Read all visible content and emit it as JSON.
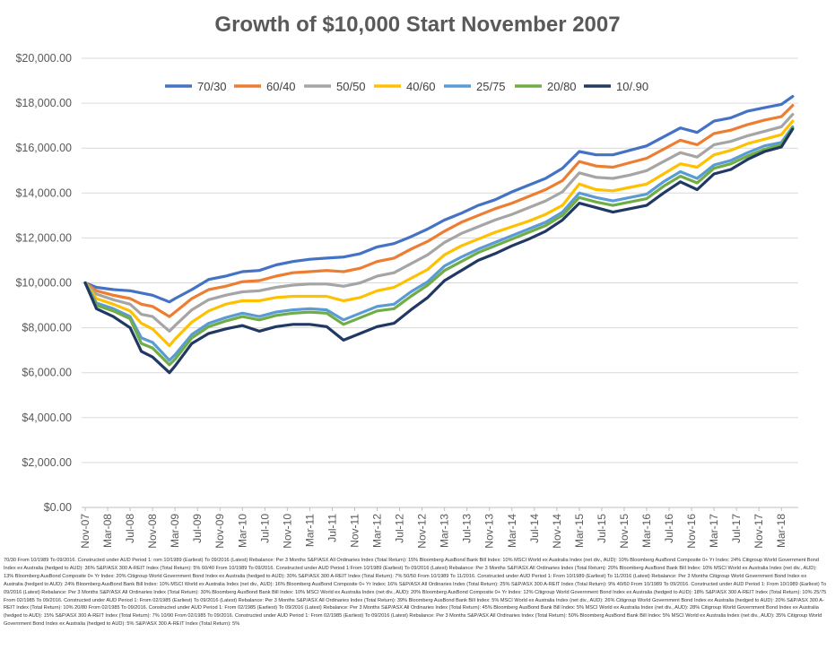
{
  "chart_data": {
    "type": "line",
    "title": "Growth of $10,000 Start November 2007",
    "xlabel": "",
    "ylabel": "",
    "ylim": [
      0,
      20000
    ],
    "y_ticks": [
      "$0.00",
      "$2,000.00",
      "$4,000.00",
      "$6,000.00",
      "$8,000.00",
      "$10,000.00",
      "$12,000.00",
      "$14,000.00",
      "$16,000.00",
      "$18,000.00",
      "$20,000.00"
    ],
    "x_ticks": [
      "Nov-07",
      "Mar-08",
      "Jul-08",
      "Nov-08",
      "Mar-09",
      "Jul-09",
      "Nov-09",
      "Mar-10",
      "Jul-10",
      "Nov-10",
      "Mar-11",
      "Jul-11",
      "Nov-11",
      "Mar-12",
      "Jul-12",
      "Nov-12",
      "Mar-13",
      "Jul-13",
      "Nov-13",
      "Mar-14",
      "Jul-14",
      "Nov-14",
      "Mar-15",
      "Jul-15",
      "Nov-15",
      "Mar-16",
      "Jul-16",
      "Nov-16",
      "Mar-17",
      "Jul-17",
      "Nov-17",
      "Mar-18"
    ],
    "grid": "horizontal",
    "legend_position": "top",
    "series": [
      {
        "name": "70/30",
        "color": "#4472C4",
        "x": [
          "2007-11",
          "2008-01",
          "2008-04",
          "2008-07",
          "2008-09",
          "2008-11",
          "2009-02",
          "2009-03",
          "2009-06",
          "2009-09",
          "2009-12",
          "2010-03",
          "2010-06",
          "2010-09",
          "2010-12",
          "2011-03",
          "2011-06",
          "2011-09",
          "2011-12",
          "2012-03",
          "2012-06",
          "2012-09",
          "2012-12",
          "2013-03",
          "2013-06",
          "2013-09",
          "2013-12",
          "2014-03",
          "2014-06",
          "2014-09",
          "2014-12",
          "2015-03",
          "2015-06",
          "2015-09",
          "2015-12",
          "2016-03",
          "2016-06",
          "2016-09",
          "2016-12",
          "2017-03",
          "2017-06",
          "2017-09",
          "2017-12",
          "2018-03",
          "2018-05"
        ],
        "y": [
          10000,
          9800,
          9700,
          9650,
          9550,
          9450,
          9150,
          9300,
          9700,
          10150,
          10300,
          10500,
          10550,
          10800,
          10950,
          11050,
          11100,
          11150,
          11300,
          11600,
          11750,
          12050,
          12400,
          12800,
          13100,
          13450,
          13700,
          14050,
          14350,
          14650,
          15100,
          15850,
          15700,
          15700,
          15900,
          16100,
          16500,
          16900,
          16700,
          17200,
          17350,
          17650,
          17800,
          17950,
          18300
        ]
      },
      {
        "name": "60/40",
        "color": "#ED7D31",
        "x": [
          "2007-11",
          "2008-01",
          "2008-04",
          "2008-07",
          "2008-09",
          "2008-11",
          "2009-02",
          "2009-03",
          "2009-06",
          "2009-09",
          "2009-12",
          "2010-03",
          "2010-06",
          "2010-09",
          "2010-12",
          "2011-03",
          "2011-06",
          "2011-09",
          "2011-12",
          "2012-03",
          "2012-06",
          "2012-09",
          "2012-12",
          "2013-03",
          "2013-06",
          "2013-09",
          "2013-12",
          "2014-03",
          "2014-06",
          "2014-09",
          "2014-12",
          "2015-03",
          "2015-06",
          "2015-09",
          "2015-12",
          "2016-03",
          "2016-06",
          "2016-09",
          "2016-12",
          "2017-03",
          "2017-06",
          "2017-09",
          "2017-12",
          "2018-03",
          "2018-05"
        ],
        "y": [
          10000,
          9650,
          9450,
          9300,
          9050,
          8950,
          8500,
          8700,
          9300,
          9700,
          9850,
          10050,
          10100,
          10300,
          10450,
          10500,
          10550,
          10500,
          10650,
          10950,
          11100,
          11500,
          11850,
          12300,
          12700,
          13000,
          13300,
          13550,
          13850,
          14150,
          14550,
          15400,
          15200,
          15150,
          15350,
          15550,
          15950,
          16350,
          16150,
          16650,
          16800,
          17050,
          17250,
          17400,
          17900
        ]
      },
      {
        "name": "50/50",
        "color": "#A5A5A5",
        "x": [
          "2007-11",
          "2008-01",
          "2008-04",
          "2008-07",
          "2008-09",
          "2008-11",
          "2009-02",
          "2009-03",
          "2009-06",
          "2009-09",
          "2009-12",
          "2010-03",
          "2010-06",
          "2010-09",
          "2010-12",
          "2011-03",
          "2011-06",
          "2011-09",
          "2011-12",
          "2012-03",
          "2012-06",
          "2012-09",
          "2012-12",
          "2013-03",
          "2013-06",
          "2013-09",
          "2013-12",
          "2014-03",
          "2014-06",
          "2014-09",
          "2014-12",
          "2015-03",
          "2015-06",
          "2015-09",
          "2015-12",
          "2016-03",
          "2016-06",
          "2016-09",
          "2016-12",
          "2017-03",
          "2017-06",
          "2017-09",
          "2017-12",
          "2018-03",
          "2018-05"
        ],
        "y": [
          10000,
          9500,
          9250,
          9050,
          8600,
          8500,
          7850,
          8100,
          8800,
          9250,
          9450,
          9600,
          9650,
          9800,
          9900,
          9950,
          9950,
          9850,
          10000,
          10300,
          10450,
          10850,
          11250,
          11800,
          12200,
          12500,
          12800,
          13050,
          13350,
          13650,
          14050,
          14900,
          14700,
          14650,
          14800,
          15000,
          15400,
          15800,
          15600,
          16150,
          16300,
          16550,
          16750,
          16950,
          17500
        ]
      },
      {
        "name": "40/60",
        "color": "#FFC000",
        "x": [
          "2007-11",
          "2008-01",
          "2008-04",
          "2008-07",
          "2008-09",
          "2008-11",
          "2009-02",
          "2009-03",
          "2009-06",
          "2009-09",
          "2009-12",
          "2010-03",
          "2010-06",
          "2010-09",
          "2010-12",
          "2011-03",
          "2011-06",
          "2011-09",
          "2011-12",
          "2012-03",
          "2012-06",
          "2012-09",
          "2012-12",
          "2013-03",
          "2013-06",
          "2013-09",
          "2013-12",
          "2014-03",
          "2014-06",
          "2014-09",
          "2014-12",
          "2015-03",
          "2015-06",
          "2015-09",
          "2015-12",
          "2016-03",
          "2016-06",
          "2016-09",
          "2016-12",
          "2017-03",
          "2017-06",
          "2017-09",
          "2017-12",
          "2018-03",
          "2018-05"
        ],
        "y": [
          10000,
          9300,
          9050,
          8750,
          8200,
          7950,
          7200,
          7500,
          8250,
          8750,
          9050,
          9200,
          9200,
          9350,
          9400,
          9400,
          9400,
          9200,
          9350,
          9650,
          9800,
          10200,
          10600,
          11250,
          11650,
          11950,
          12250,
          12500,
          12750,
          13050,
          13450,
          14400,
          14150,
          14100,
          14250,
          14400,
          14850,
          15300,
          15150,
          15700,
          15900,
          16200,
          16400,
          16600,
          17200
        ]
      },
      {
        "name": "25/75",
        "color": "#5B9BD5",
        "x": [
          "2007-11",
          "2008-01",
          "2008-04",
          "2008-07",
          "2008-09",
          "2008-11",
          "2009-02",
          "2009-03",
          "2009-06",
          "2009-09",
          "2009-12",
          "2010-03",
          "2010-06",
          "2010-09",
          "2010-12",
          "2011-03",
          "2011-06",
          "2011-09",
          "2011-12",
          "2012-03",
          "2012-06",
          "2012-09",
          "2012-12",
          "2013-03",
          "2013-06",
          "2013-09",
          "2013-12",
          "2014-03",
          "2014-06",
          "2014-09",
          "2014-12",
          "2015-03",
          "2015-06",
          "2015-09",
          "2015-12",
          "2016-03",
          "2016-06",
          "2016-09",
          "2016-12",
          "2017-03",
          "2017-06",
          "2017-09",
          "2017-12",
          "2018-03",
          "2018-05"
        ],
        "y": [
          10000,
          9100,
          8850,
          8500,
          7550,
          7350,
          6550,
          6800,
          7700,
          8200,
          8450,
          8650,
          8500,
          8700,
          8800,
          8850,
          8800,
          8350,
          8650,
          8950,
          9050,
          9600,
          10050,
          10750,
          11150,
          11500,
          11800,
          12100,
          12400,
          12700,
          13150,
          14000,
          13800,
          13650,
          13800,
          13950,
          14500,
          14950,
          14650,
          15250,
          15450,
          15800,
          16100,
          16250,
          16950
        ]
      },
      {
        "name": "20/80",
        "color": "#70AD47",
        "x": [
          "2007-11",
          "2008-01",
          "2008-04",
          "2008-07",
          "2008-09",
          "2008-11",
          "2009-02",
          "2009-03",
          "2009-06",
          "2009-09",
          "2009-12",
          "2010-03",
          "2010-06",
          "2010-09",
          "2010-12",
          "2011-03",
          "2011-06",
          "2011-09",
          "2011-12",
          "2012-03",
          "2012-06",
          "2012-09",
          "2012-12",
          "2013-03",
          "2013-06",
          "2013-09",
          "2013-12",
          "2014-03",
          "2014-06",
          "2014-09",
          "2014-12",
          "2015-03",
          "2015-06",
          "2015-09",
          "2015-12",
          "2016-03",
          "2016-06",
          "2016-09",
          "2016-12",
          "2017-03",
          "2017-06",
          "2017-09",
          "2017-12",
          "2018-03",
          "2018-05"
        ],
        "y": [
          10000,
          9000,
          8750,
          8400,
          7300,
          7100,
          6350,
          6600,
          7550,
          8050,
          8300,
          8500,
          8350,
          8550,
          8650,
          8700,
          8650,
          8150,
          8450,
          8750,
          8850,
          9400,
          9900,
          10550,
          10950,
          11350,
          11650,
          11950,
          12250,
          12550,
          13000,
          13800,
          13600,
          13450,
          13600,
          13750,
          14300,
          14750,
          14450,
          15100,
          15300,
          15650,
          15950,
          16150,
          16900
        ]
      },
      {
        "name": "10/.90",
        "color": "#203864",
        "x": [
          "2007-11",
          "2008-01",
          "2008-04",
          "2008-07",
          "2008-09",
          "2008-11",
          "2009-02",
          "2009-03",
          "2009-06",
          "2009-09",
          "2009-12",
          "2010-03",
          "2010-06",
          "2010-09",
          "2010-12",
          "2011-03",
          "2011-06",
          "2011-09",
          "2011-12",
          "2012-03",
          "2012-06",
          "2012-09",
          "2012-12",
          "2013-03",
          "2013-06",
          "2013-09",
          "2013-12",
          "2014-03",
          "2014-06",
          "2014-09",
          "2014-12",
          "2015-03",
          "2015-06",
          "2015-09",
          "2015-12",
          "2016-03",
          "2016-06",
          "2016-09",
          "2016-12",
          "2017-03",
          "2017-06",
          "2017-09",
          "2017-12",
          "2018-03",
          "2018-05"
        ],
        "y": [
          10000,
          8850,
          8500,
          8000,
          6950,
          6700,
          6000,
          6300,
          7300,
          7750,
          7950,
          8100,
          7850,
          8050,
          8150,
          8150,
          8050,
          7450,
          7750,
          8050,
          8200,
          8800,
          9350,
          10100,
          10550,
          11000,
          11300,
          11650,
          11950,
          12300,
          12800,
          13550,
          13350,
          13150,
          13300,
          13450,
          14000,
          14500,
          14150,
          14850,
          15050,
          15500,
          15850,
          16050,
          16850
        ]
      }
    ]
  },
  "footnote": "70/30 From 10/1989 To 09/2016. Constructed under AUD Period 1: rom 10/1989 (Earliest) To 09/2016 (Latest) Rebalance: Per 3 Months S&P/ASX All Ordinaries Index (Total Return): 15% Bloomberg AusBond Bank Bill Index: 10% MSCI World ex Australia Index (net div., AUD): 10% Bloomberg AusBond Composite 0+ Yr Index: 24% Citigroup World Government Bond Index ex Australia (hedged to AUD): 36% S&P/ASX 300 A-REIT Index (Total Return): 5% 60/40 From 10/1989 To 09/2016. Constructed under AUD Period 1:From 10/1989 (Earliest) To 09/2016 (Latest) Rebalance: Per 3 Months S&P/ASX All Ordinaries Index (Total Return): 20% Bloomberg AusBond Bank Bill Index: 10% MSCI World ex Australia Index (net div., AUD): 13% Bloomberg AusBond Composite 0+ Yr Index: 20% Citigroup World Government Bond Index ex Australia (hedged to AUD): 30% S&P/ASX 300 A-REIT Index (Total Return): 7% 50/50 From 10/1989 To 11/2016. Constructed under AUD Period 1: From 10/1989 (Earliest) To 11/2016 (Latest) Rebalance: Per 3 Months Citigroup World Government Bond Index ex Australia (hedged to AUD): 24% Bloomberg AusBond Bank Bill Index: 10% MSCI World ex Australia Index (net div., AUD): 16% Bloomberg AusBond Composite 0+ Yr Index: 16% S&P/ASX All Ordinaries Index (Total Return): 25% S&P/ASX 300 A-REIT Index (Total Return): 9% 40/60 From 10/1989 To 09/2016. Constructed under AUD Period 1: From 10/1989 (Earliest) To 09/2016 (Latest) Rebalance: Per 3 Months S&P/ASX All Ordinaries Index (Total Return): 30% Bloomberg AusBond Bank Bill Index: 10% MSCI World ex Australia Index (net div., AUD): 20% Bloomberg AusBond Composite 0+ Yr Index: 12% Citigroup World Government Bond Index ex Australia (hedged to AUD): 18% S&P/ASX 300 A-REIT Index (Total Return): 10% 25/75 From 02/1985 To 09/2016. Constructed under AUD Period 1: From 02/1985 (Earliest) To 09/2016 (Latest) Rebalance: Per 3 Months S&P/ASX All Ordinaries Index (Total Return): 39% Bloomberg AusBond Bank Bill Index: 5% MSCI World ex Australia Index (net div., AUD): 26% Citigroup World Government Bond Index ex Australia (hedged to AUD): 20% S&P/ASX 300 A-REIT Index (Total Return): 10% 20/80 From 02/1985 To 09/2016. Constructed under AUD Period 1: From 02/1985 (Earliest) To 09/2016 (Latest) Rebalance: Per 3 Months S&P/ASX All Ordinaries Index (Total Return): 45% Bloomberg AusBond Bank Bill Index: 5% MSCI World ex Australia Index (net div., AUD): 28% Citigroup World Government Bond Index ex Australia (hedged to AUD): 15% S&P/ASX 300 A-REIT Index (Total Return): 7% 10/90 From 02/1985 To 09/2016. Constructed under AUD Period 1: From 02/1985 (Earliest) To 09/2016 (Latest) Rebalance: Per 3 Months S&P/ASX All Ordinaries Index (Total Return): 50% Bloomberg AusBond Bank Bill Index: 5% MSCI World ex Australia Index (net div., AUD): 35% Citigroup World Government Bond Index ex Australia (hedged to AUD): 5% S&P/ASX 300 A-REIT Index (Total Return): 5%"
}
